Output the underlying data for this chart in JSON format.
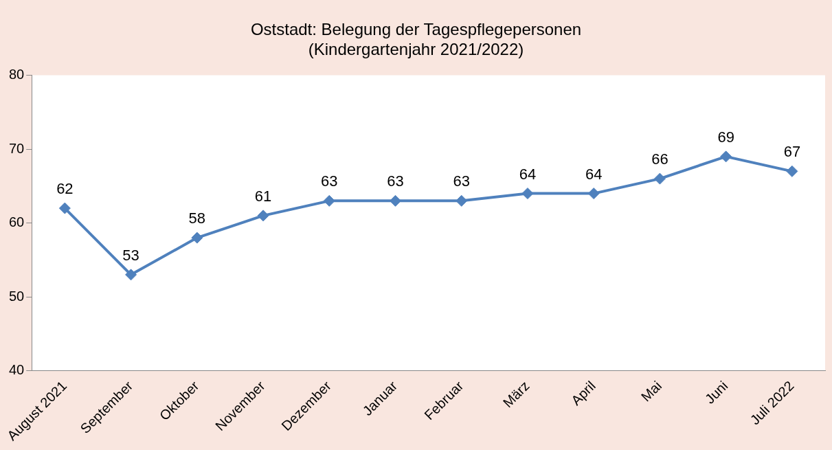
{
  "chart_data": {
    "type": "line",
    "title": [
      "Oststadt: Belegung der Tagespflegepersonen",
      "(Kindergartenjahr 2021/2022)"
    ],
    "categories": [
      "August 2021",
      "September",
      "Oktober",
      "November",
      "Dezember",
      "Januar",
      "Februar",
      "März",
      "April",
      "Mai",
      "Juni",
      "Juli 2022"
    ],
    "series": [
      {
        "color": "#4f81bd",
        "values": [
          62,
          53,
          58,
          61,
          63,
          63,
          63,
          64,
          64,
          66,
          69,
          67
        ]
      }
    ],
    "ylim": [
      40,
      80
    ],
    "yticks": [
      40,
      50,
      60,
      70,
      80
    ],
    "grid": false,
    "legend": false,
    "marker": "diamond",
    "line_style": "solid",
    "data_labels": true
  }
}
